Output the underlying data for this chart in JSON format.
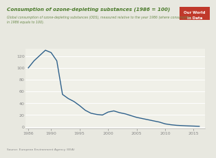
{
  "title": "Consumption of ozone-depleting substances (1986 = 100)",
  "subtitle": "Global consumption of ozone-depleting substances (ODS), measured relative to the year 1986 (where consumption\nin 1986 equals to 100).",
  "source": "Source: European Environment Agency (EEA)",
  "logo_line1": "Our World",
  "logo_line2": "in Data",
  "logo_bg": "#c0392b",
  "yticks": [
    0,
    20,
    40,
    60,
    80,
    100,
    120
  ],
  "xticks": [
    1986,
    1990,
    1995,
    2000,
    2005,
    2010,
    2015
  ],
  "xlim": [
    1985.5,
    2017
  ],
  "ylim": [
    -3,
    133
  ],
  "line_color": "#2c5f8a",
  "plot_bg": "#f0f0e8",
  "outer_bg": "#e8e8e0",
  "title_color": "#4a7a2a",
  "subtitle_color": "#6a8a4a",
  "source_color": "#888888",
  "grid_color": "#ffffff",
  "tick_color": "#888888",
  "years": [
    1986,
    1987,
    1988,
    1989,
    1990,
    1991,
    1992,
    1993,
    1994,
    1995,
    1996,
    1997,
    1998,
    1999,
    2000,
    2001,
    2002,
    2003,
    2004,
    2005,
    2006,
    2007,
    2008,
    2009,
    2010,
    2011,
    2012,
    2013,
    2014,
    2015,
    2016
  ],
  "values": [
    100,
    112,
    121,
    130,
    126,
    112,
    55,
    48,
    43,
    36,
    28,
    23,
    21,
    20,
    25,
    27,
    24,
    22,
    19,
    16,
    14,
    12,
    10,
    8,
    5,
    3.5,
    2.5,
    2,
    1.5,
    1.2,
    0.8
  ]
}
